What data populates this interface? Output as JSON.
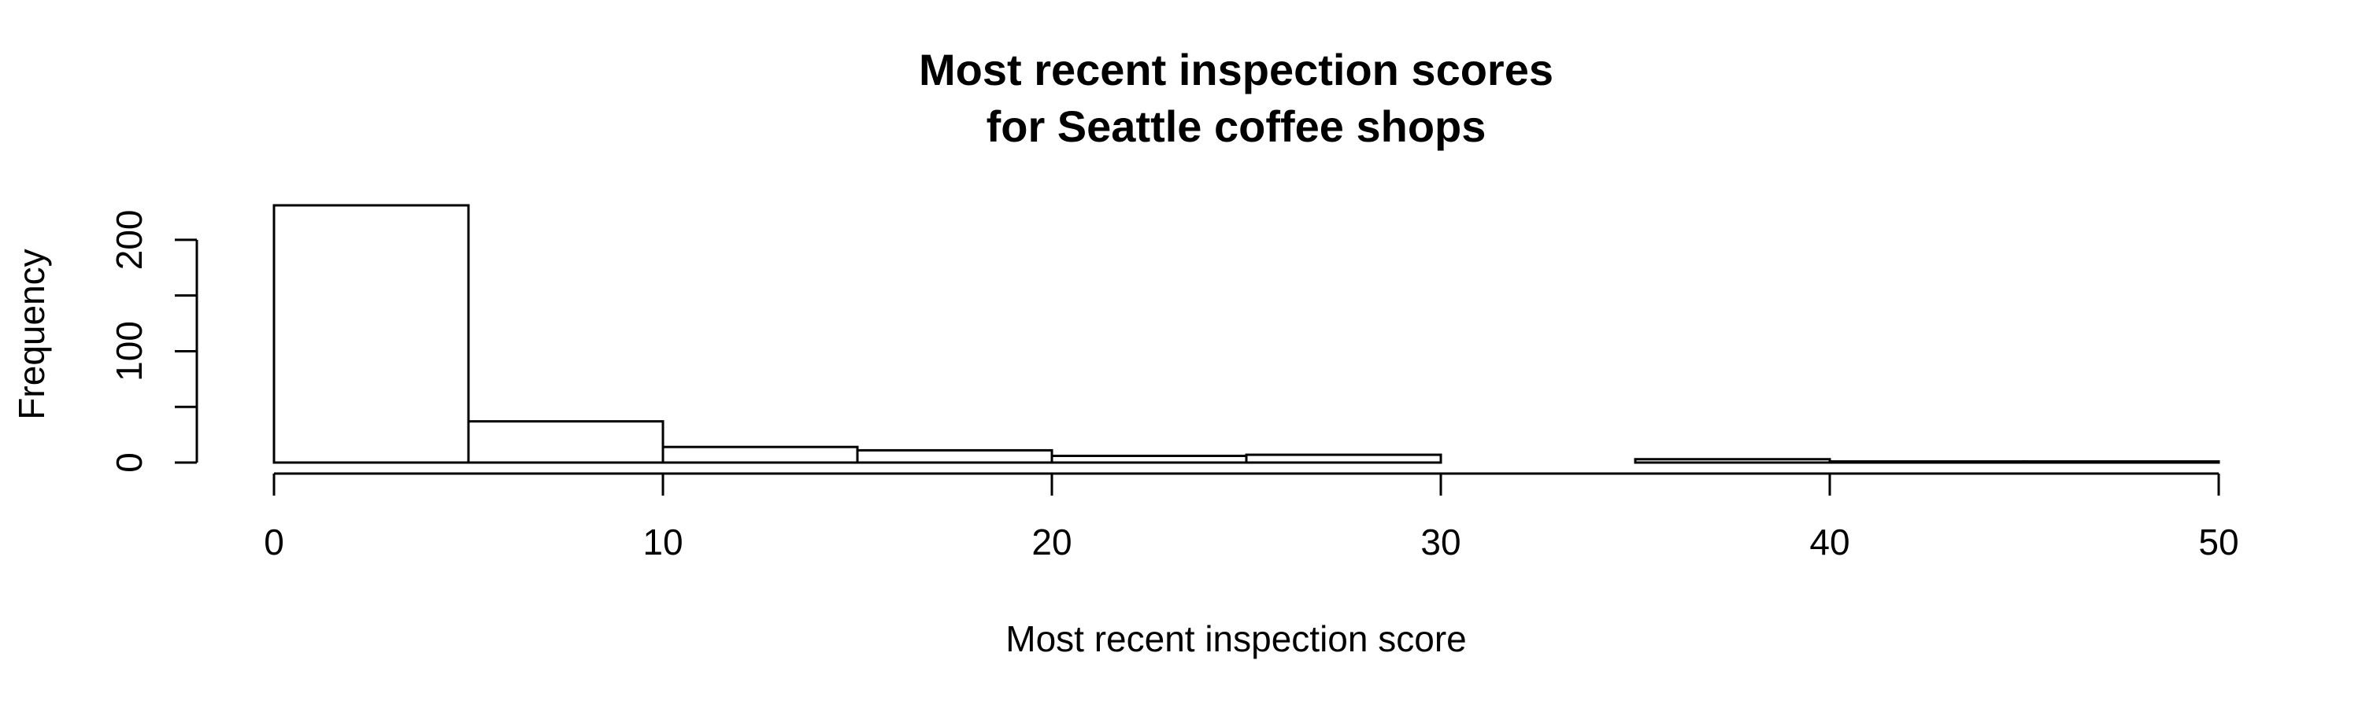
{
  "chart_data": {
    "type": "bar",
    "title_lines": [
      "Most recent inspection scores",
      "for Seattle coffee shops"
    ],
    "xlabel": "Most recent inspection score",
    "ylabel": "Frequency",
    "bins": [
      {
        "from": 0,
        "to": 5,
        "count": 231
      },
      {
        "from": 5,
        "to": 10,
        "count": 37
      },
      {
        "from": 10,
        "to": 15,
        "count": 14
      },
      {
        "from": 15,
        "to": 20,
        "count": 11
      },
      {
        "from": 20,
        "to": 25,
        "count": 6
      },
      {
        "from": 25,
        "to": 30,
        "count": 7
      },
      {
        "from": 30,
        "to": 35,
        "count": 0
      },
      {
        "from": 35,
        "to": 40,
        "count": 3
      },
      {
        "from": 40,
        "to": 45,
        "count": 1
      },
      {
        "from": 45,
        "to": 50,
        "count": 1
      }
    ],
    "xlim": [
      0,
      50
    ],
    "ylim": [
      0,
      231
    ],
    "x_ticks": [
      0,
      10,
      20,
      30,
      40,
      50
    ],
    "y_ticks": [
      0,
      50,
      100,
      150,
      200
    ],
    "y_tick_labels": [
      "0",
      "",
      "100",
      "",
      "200"
    ],
    "grid": false
  }
}
